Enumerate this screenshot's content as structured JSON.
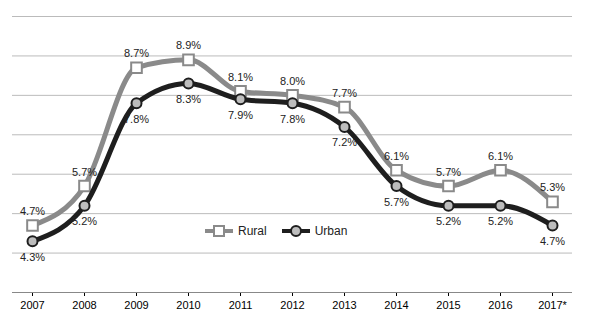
{
  "chart_data": {
    "type": "line",
    "categories": [
      "2007",
      "2008",
      "2009",
      "2010",
      "2011",
      "2012",
      "2013",
      "2014",
      "2015",
      "2016",
      "2017*"
    ],
    "series": [
      {
        "name": "Rural",
        "color": "#8a8a8a",
        "marker": "square",
        "values": [
          4.7,
          5.7,
          8.7,
          8.9,
          8.1,
          8.0,
          7.7,
          6.1,
          5.7,
          6.1,
          5.3
        ],
        "value_labels": [
          "4.7%",
          "5.7%",
          "8.7%",
          "8.9%",
          "8.1%",
          "8.0%",
          "7.7%",
          "6.1%",
          "5.7%",
          "6.1%",
          "5.3%"
        ]
      },
      {
        "name": "Urban",
        "color": "#1e1e1e",
        "marker": "circle",
        "values": [
          4.3,
          5.2,
          7.8,
          8.3,
          7.9,
          7.8,
          7.2,
          5.7,
          5.2,
          5.2,
          4.7
        ],
        "value_labels": [
          "4.3%",
          "5.2%",
          "7.8%",
          "8.3%",
          "7.9%",
          "7.8%",
          "7.2%",
          "5.7%",
          "5.2%",
          "5.2%",
          "4.7%"
        ]
      }
    ],
    "ylim": [
      3,
      10
    ],
    "yticks": [
      3,
      4,
      5,
      6,
      7,
      8,
      9,
      10
    ],
    "grid": true,
    "tick_labels": "x",
    "data_labels": true,
    "legend": "center"
  }
}
